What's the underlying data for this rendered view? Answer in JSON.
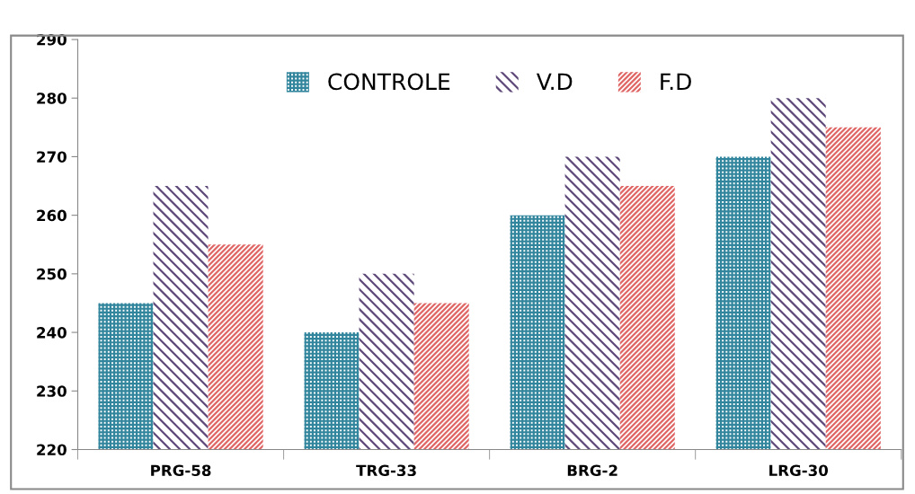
{
  "chart_data": {
    "type": "bar",
    "categories": [
      "PRG-58",
      "TRG-33",
      "BRG-2",
      "LRG-30"
    ],
    "series": [
      {
        "name": "CONTROLE",
        "color": "#31859c",
        "values": [
          245,
          240,
          260,
          270
        ]
      },
      {
        "name": "V.D",
        "color": "#5f497a",
        "values": [
          265,
          250,
          270,
          280
        ]
      },
      {
        "name": "F.D",
        "color": "#e06666",
        "values": [
          255,
          245,
          265,
          275
        ]
      }
    ],
    "ylim": [
      220,
      290
    ],
    "yticks": [
      220,
      230,
      240,
      250,
      260,
      270,
      280,
      290
    ],
    "grid": false,
    "legend": "top"
  }
}
